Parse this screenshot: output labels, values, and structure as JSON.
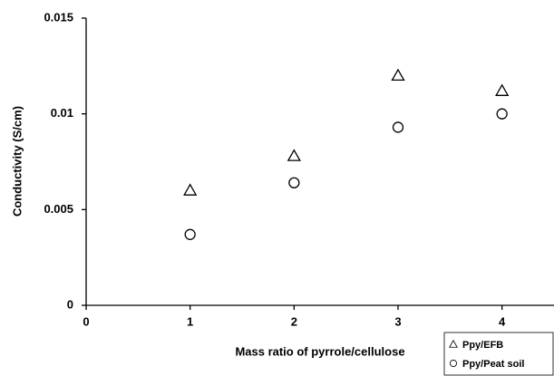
{
  "chart_data": {
    "type": "scatter",
    "x_label": "Mass ratio of pyrrole/cellulose",
    "y_label": "Conductivity (S/cm)",
    "x": [
      1,
      2,
      3,
      4
    ],
    "series": [
      {
        "name": "Ppy/EFB",
        "color": "#000000",
        "marker": "triangle",
        "values": [
          0.006,
          0.0078,
          0.012,
          0.0112
        ]
      },
      {
        "name": "Ppy/Peat soil",
        "color": "#000000",
        "marker": "circle",
        "values": [
          0.0037,
          0.0064,
          0.0093,
          0.01
        ]
      }
    ],
    "xlim": [
      0,
      4.5
    ],
    "xticks": [
      0,
      1,
      2,
      3,
      4
    ],
    "ylim": [
      0,
      0.015
    ],
    "yticks": [
      0,
      0.005,
      0.01,
      0.015
    ],
    "grid": false,
    "legend": "bottom-right"
  }
}
